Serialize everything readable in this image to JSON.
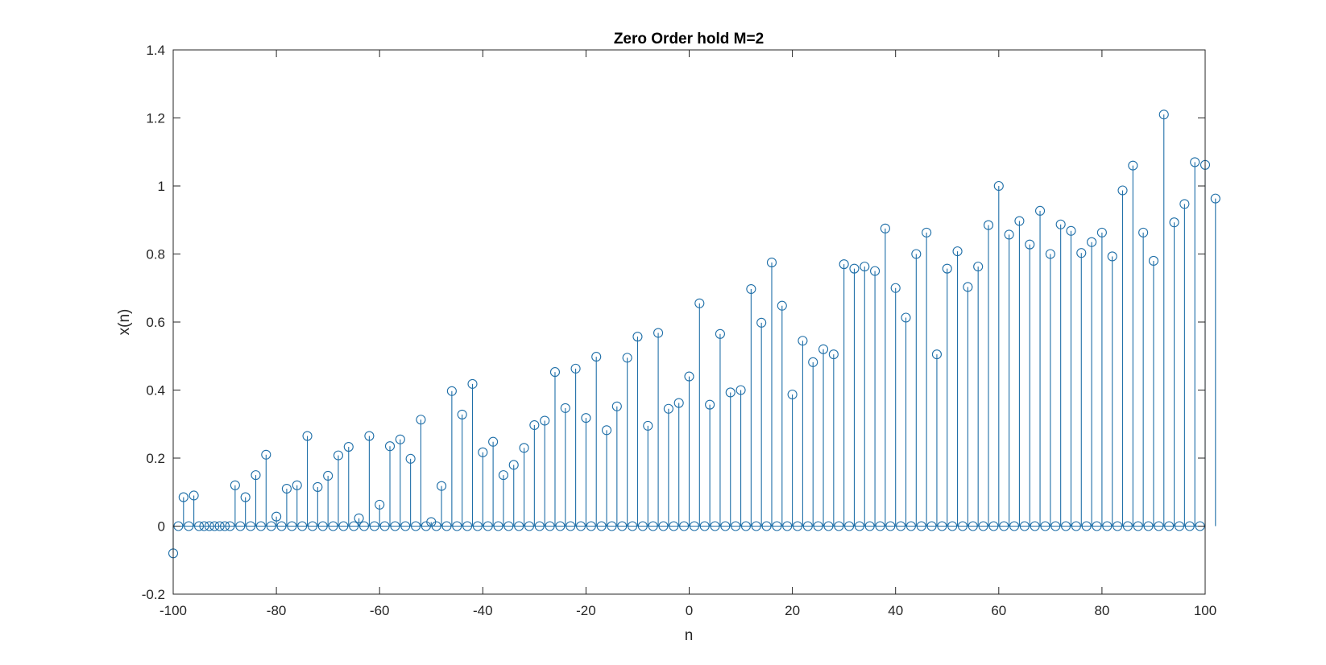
{
  "colors": {
    "series": "#1f6fa8",
    "axis": "#262626",
    "background": "#ffffff"
  },
  "chart_data": {
    "type": "stem",
    "title": "Zero Order hold M=2",
    "xlabel": "n",
    "ylabel": "x(n)",
    "xlim": [
      -100,
      100
    ],
    "ylim": [
      -0.2,
      1.4
    ],
    "xticks": [
      "-100",
      "-80",
      "-60",
      "-40",
      "-20",
      "0",
      "20",
      "40",
      "60",
      "80",
      "100"
    ],
    "yticks": [
      "-0.2",
      "0",
      "0.2",
      "0.4",
      "0.6",
      "0.8",
      "1",
      "1.2",
      "1.4"
    ],
    "grid": false,
    "legend": "none",
    "x_start": -100,
    "x_step": 2,
    "note": "Samples at even n carry the held values; samples at odd n are 0.",
    "even_values": [
      -0.08,
      0.085,
      0.09,
      0.0,
      0.0,
      0.0,
      0.12,
      0.085,
      0.15,
      0.21,
      0.028,
      0.11,
      0.12,
      0.265,
      0.115,
      0.148,
      0.208,
      0.233,
      0.023,
      0.265,
      0.063,
      0.235,
      0.255,
      0.198,
      0.313,
      0.012,
      0.118,
      0.397,
      0.328,
      0.418,
      0.217,
      0.248,
      0.15,
      0.18,
      0.23,
      0.297,
      0.31,
      0.453,
      0.347,
      0.463,
      0.318,
      0.498,
      0.282,
      0.352,
      0.495,
      0.557,
      0.295,
      0.568,
      0.345,
      0.362,
      0.44,
      0.655,
      0.357,
      0.565,
      0.393,
      0.4,
      0.697,
      0.598,
      0.775,
      0.648,
      0.387,
      0.545,
      0.482,
      0.52,
      0.505,
      0.77,
      0.757,
      0.763,
      0.75,
      0.875,
      0.7,
      0.613,
      0.8,
      0.863,
      0.505,
      0.757,
      0.808,
      0.703,
      0.763,
      0.885,
      1.0,
      0.857,
      0.897,
      0.828,
      0.927,
      0.8,
      0.887,
      0.868,
      0.803,
      0.835,
      0.863,
      0.793,
      0.987,
      1.06,
      0.863,
      0.78,
      1.21,
      0.893,
      0.947,
      1.07,
      1.062,
      0.963
    ]
  }
}
